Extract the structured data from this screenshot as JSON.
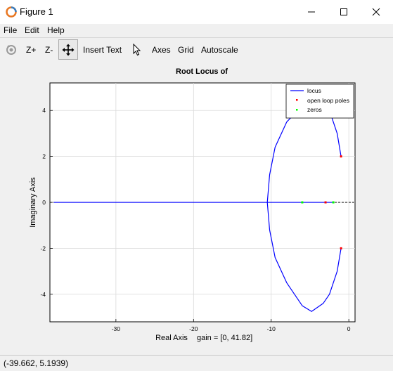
{
  "window": {
    "title": "Figure 1",
    "app_icon": "octave-icon",
    "controls": [
      "minimize-icon",
      "maximize-icon",
      "close-icon"
    ]
  },
  "menu": {
    "items": [
      "File",
      "Edit",
      "Help"
    ]
  },
  "toolbar": {
    "rotate_icon": "rotate-icon",
    "zoom_in": "Z+",
    "zoom_out": "Z-",
    "pan_icon": "pan-icon",
    "insert_text": "Insert Text",
    "select_icon": "pointer-icon",
    "axes": "Axes",
    "grid": "Grid",
    "autoscale": "Autoscale"
  },
  "plot": {
    "title": "Root Locus of",
    "xlabel": "Real Axis",
    "gain_label": "gain = [0, 41.82]",
    "ylabel": "Imaginary Axis",
    "legend": {
      "locus": "locus",
      "poles": "open loop poles",
      "zeros": "zeros"
    }
  },
  "chart_data": {
    "type": "scatter",
    "title": "Root Locus of",
    "xlabel": "Real Axis",
    "ylabel": "Imaginary Axis",
    "xlim": [
      -38.5,
      0.8
    ],
    "ylim": [
      -5.2,
      5.2
    ],
    "x_ticks": [
      -30,
      -20,
      -10,
      0
    ],
    "y_ticks": [
      -4,
      -2,
      0,
      2,
      4
    ],
    "grid": true,
    "legend_position": "top-right",
    "colors": {
      "locus": "#0000ff",
      "poles": "#ff0000",
      "zeros": "#00ff00",
      "real_axis": "#000000"
    },
    "series": [
      {
        "name": "locus",
        "points": [
          [
            -1.0,
            2.0
          ],
          [
            -1.5,
            3.0
          ],
          [
            -2.5,
            4.0
          ],
          [
            -3.3,
            4.4
          ],
          [
            -4.5,
            4.5
          ],
          [
            -6.0,
            4.2
          ],
          [
            -8.0,
            3.5
          ],
          [
            -9.5,
            2.4
          ],
          [
            -10.2,
            1.2
          ],
          [
            -10.5,
            0.0
          ],
          [
            -10.2,
            -1.2
          ],
          [
            -9.5,
            -2.4
          ],
          [
            -8.0,
            -3.5
          ],
          [
            -6.0,
            -4.5
          ],
          [
            -4.8,
            -4.75
          ],
          [
            -3.3,
            -4.4
          ],
          [
            -2.5,
            -4.0
          ],
          [
            -1.5,
            -3.0
          ],
          [
            -1.0,
            -2.0
          ]
        ]
      },
      {
        "name": "locus_real_axis",
        "points": [
          [
            -38.0,
            0.0
          ],
          [
            -2.0,
            0.0
          ]
        ]
      },
      {
        "name": "open loop poles",
        "points": [
          [
            -1.0,
            2.0
          ],
          [
            -1.0,
            -2.0
          ],
          [
            -3.0,
            0.0
          ]
        ]
      },
      {
        "name": "zeros",
        "points": [
          [
            -6.0,
            0.0
          ],
          [
            -2.0,
            0.0
          ]
        ]
      }
    ]
  },
  "status": {
    "coords": "(-39.662, 5.1939)"
  }
}
